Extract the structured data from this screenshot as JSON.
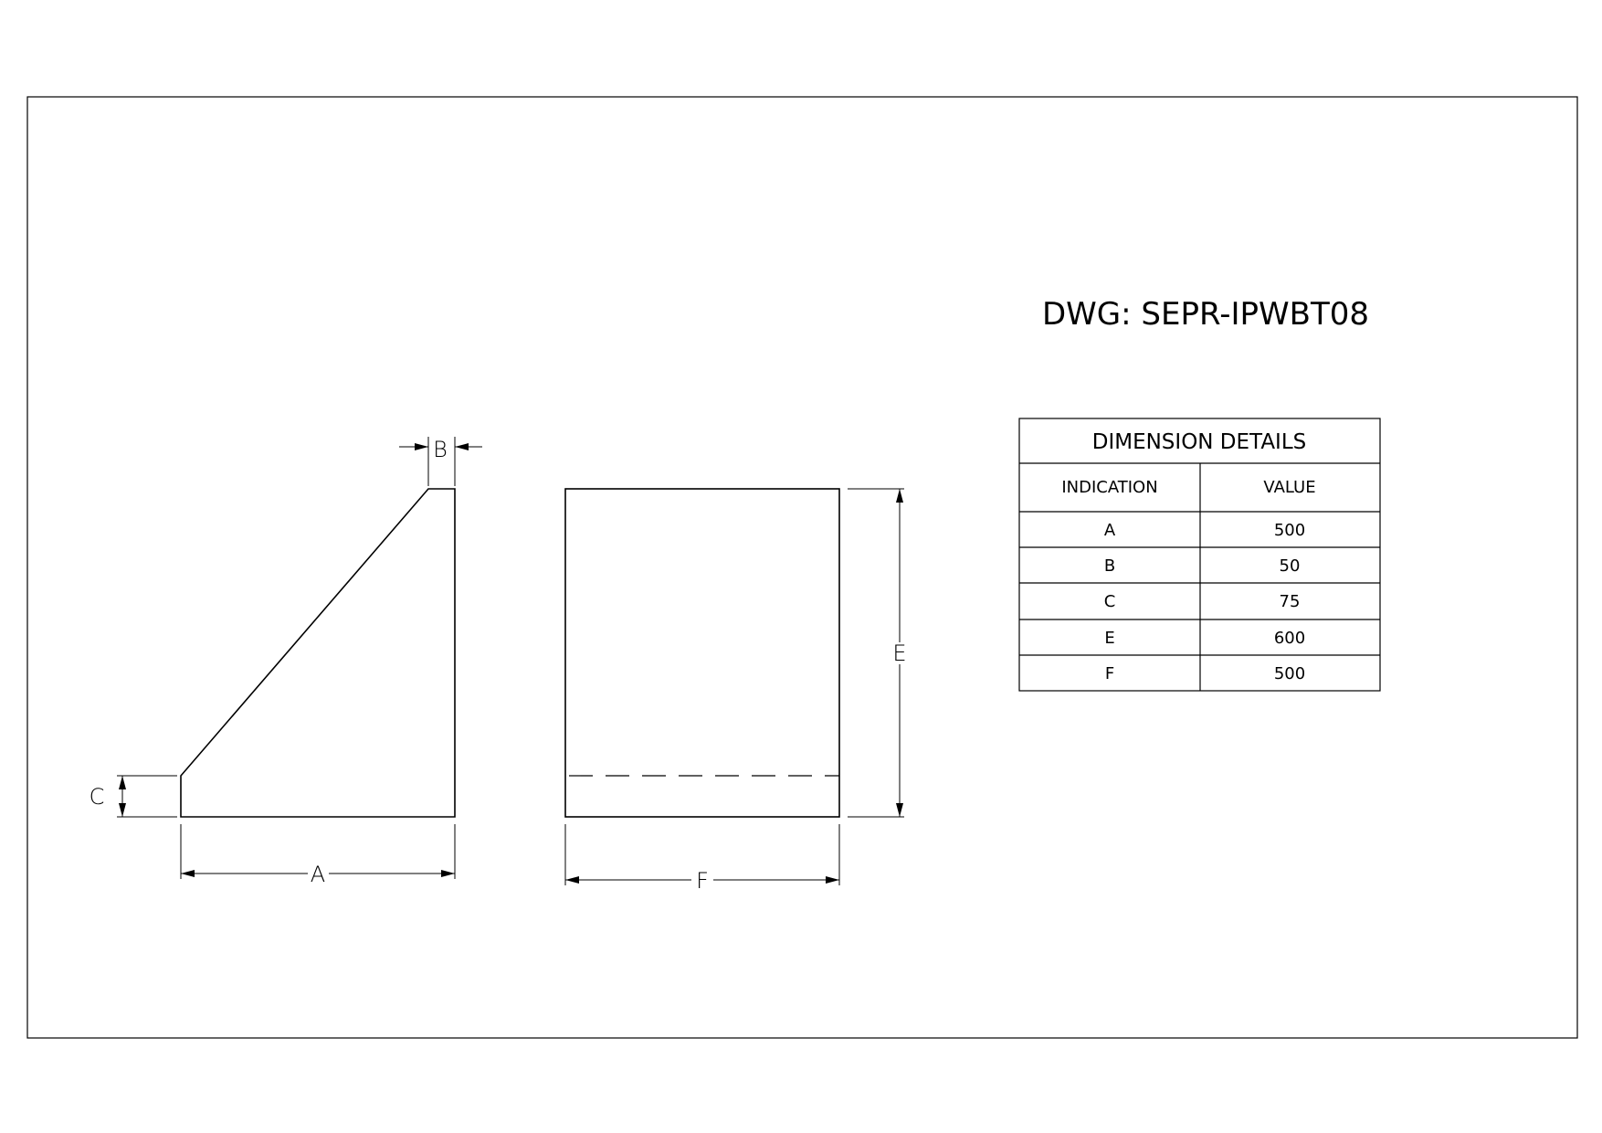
{
  "drawing_number": "DWG: SEPR-IPWBT08",
  "dimension_labels": {
    "a": "A",
    "b": "B",
    "c": "C",
    "e": "E",
    "f": "F"
  },
  "table": {
    "title": "DIMENSION DETAILS",
    "headers": [
      "INDICATION",
      "VALUE"
    ],
    "rows": [
      {
        "indication": "A",
        "value": "500"
      },
      {
        "indication": "B",
        "value": "50"
      },
      {
        "indication": "C",
        "value": "75"
      },
      {
        "indication": "E",
        "value": "600"
      },
      {
        "indication": "F",
        "value": "500"
      }
    ]
  }
}
